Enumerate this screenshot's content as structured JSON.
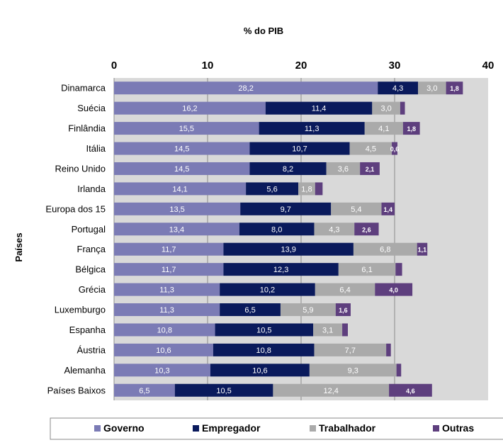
{
  "chart_data": {
    "type": "bar",
    "orientation": "horizontal",
    "stacked": true,
    "xlabel": "% do PIB",
    "ylabel": "Países",
    "xlim": [
      0,
      40
    ],
    "xticks": [
      0,
      10,
      20,
      30,
      40
    ],
    "grid": true,
    "legend_position": "bottom",
    "categories": [
      "Dinamarca",
      "Suécia",
      "Finlândia",
      "Itália",
      "Reino Unido",
      "Irlanda",
      "Europa dos 15",
      "Portugal",
      "França",
      "Bélgica",
      "Grécia",
      "Luxemburgo",
      "Espanha",
      "Áustria",
      "Alemanha",
      "Países Baixos"
    ],
    "series": [
      {
        "name": "Governo",
        "color": "#7b7bb5",
        "values": [
          28.2,
          16.2,
          15.5,
          14.5,
          14.5,
          14.1,
          13.5,
          13.4,
          11.7,
          11.7,
          11.3,
          11.3,
          10.8,
          10.6,
          10.3,
          6.5
        ],
        "labels": [
          "28,2",
          "16,2",
          "15,5",
          "14,5",
          "14,5",
          "14,1",
          "13,5",
          "13,4",
          "11,7",
          "11,7",
          "11,3",
          "11,3",
          "10,8",
          "10,6",
          "10,3",
          "6,5"
        ]
      },
      {
        "name": "Empregador",
        "color": "#0a1a5c",
        "values": [
          4.3,
          11.4,
          11.3,
          10.7,
          8.2,
          5.6,
          9.7,
          8.0,
          13.9,
          12.3,
          10.2,
          6.5,
          10.5,
          10.8,
          10.6,
          10.5
        ],
        "labels": [
          "4,3",
          "11,4",
          "11,3",
          "10,7",
          "8,2",
          "5,6",
          "9,7",
          "8,0",
          "13,9",
          "12,3",
          "10,2",
          "6,5",
          "10,5",
          "10,8",
          "10,6",
          "10,5"
        ]
      },
      {
        "name": "Trabalhador",
        "color": "#aaaaaa",
        "values": [
          3.0,
          3.0,
          4.1,
          4.5,
          3.6,
          1.8,
          5.4,
          4.3,
          6.8,
          6.1,
          6.4,
          5.9,
          3.1,
          7.7,
          9.3,
          12.4
        ],
        "labels": [
          "3,0",
          "3,0",
          "4,1",
          "4,5",
          "3,6",
          "1,8",
          "5,4",
          "4,3",
          "6,8",
          "6,1",
          "6,4",
          "5,9",
          "3,1",
          "7,7",
          "9,3",
          "12,4"
        ]
      },
      {
        "name": "Outras",
        "color": "#5e3f7e",
        "values": [
          1.8,
          0.5,
          1.8,
          0.6,
          2.1,
          0.8,
          1.4,
          2.6,
          1.1,
          0.7,
          4.0,
          1.6,
          0.6,
          0.5,
          0.5,
          4.6
        ],
        "labels": [
          "1,8",
          "",
          "1,8",
          "0,6",
          "2,1",
          "",
          "1,4",
          "2,6",
          "1,1",
          "",
          "4,0",
          "1,6",
          "",
          "",
          "",
          "4,6"
        ]
      }
    ]
  }
}
